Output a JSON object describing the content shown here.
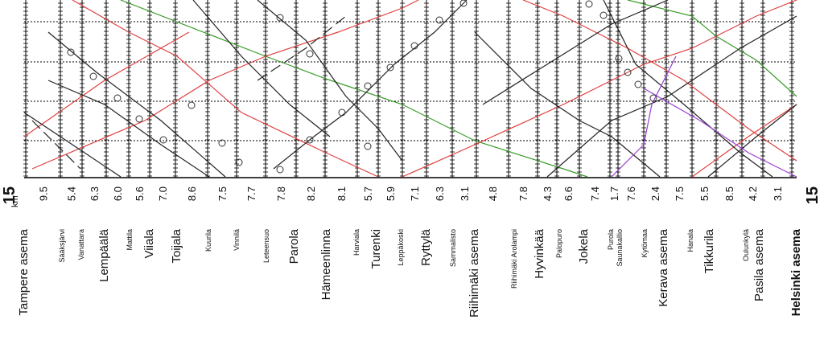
{
  "axis": {
    "unit": "km",
    "left_value": "15",
    "right_value": "15"
  },
  "stations": [
    "Tampere asema",
    "Sääksjärvi",
    "Vanattara",
    "Lempäälä",
    "Mattila",
    "Viiala",
    "Toijala",
    "Kuurila",
    "Vinnilä",
    "Leteensuo",
    "Parola",
    "Hämeenlinna",
    "Harviala",
    "Turenki",
    "Leppäkoski",
    "Ryttylä",
    "Sammalisto",
    "Riihimäki asema",
    "Riihimäki Arolampi",
    "Hyvinkää",
    "Palopuro",
    "Jokela",
    "Purola",
    "Saunakallio",
    "Kytömaa",
    "Kerava asema",
    "Hanala",
    "Tikkurila",
    "Oulunkylä",
    "Pasila asema",
    "Helsinki asema"
  ],
  "distances": [
    "9.5",
    "5.4",
    "6.3",
    "6.0",
    "5.6",
    "7.0",
    "8.6",
    "7.5",
    "7.7",
    "7.8",
    "8.2",
    "8.1",
    "5.7",
    "5.9",
    "7.1",
    "6.3",
    "3.1",
    "4.8",
    "7.8",
    "4.3",
    "6.6",
    "7.4",
    "1.7",
    "7.6",
    "2.4",
    "7.5",
    "5.5",
    "8.5",
    "4.2",
    "3.1"
  ]
}
